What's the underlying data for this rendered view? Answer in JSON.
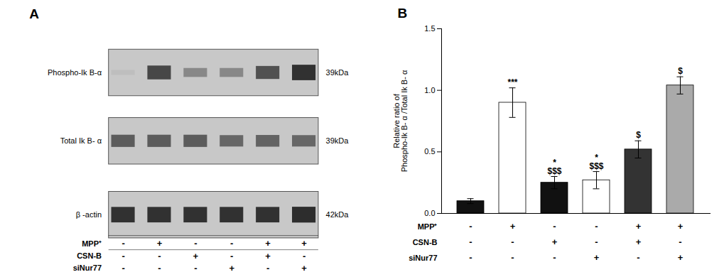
{
  "chart_data": [
    {
      "type": "heatmap",
      "title": "A",
      "rows": [
        "Phospho-Ik B-α",
        "Total Ik B- α",
        "β -actin"
      ],
      "row_annotations": [
        "39kDa",
        "39kDa",
        "42kDa"
      ],
      "cells": [
        [
          0.3,
          0.85,
          0.55,
          0.55,
          0.8,
          0.95
        ],
        [
          0.75,
          0.75,
          0.75,
          0.7,
          0.72,
          0.7
        ],
        [
          0.95,
          0.95,
          0.95,
          0.95,
          0.95,
          0.97
        ]
      ],
      "treatment_labels": [
        "MPP⁺",
        "CSN-B",
        "siNur77"
      ],
      "treatment_rows": [
        [
          "-",
          "+",
          "-",
          "-",
          "+",
          "+"
        ],
        [
          "-",
          "-",
          "+",
          "-",
          "+",
          "-"
        ],
        [
          "-",
          "-",
          "-",
          "+",
          "-",
          "+"
        ]
      ],
      "tick_labels": false
    },
    {
      "type": "bar",
      "title": "B",
      "ylabel": "Relative ratio of\nPhospho-Ik B- α /Total Ik B- α",
      "values": [
        0.1,
        0.9,
        0.25,
        0.27,
        0.52,
        1.04
      ],
      "errors": [
        0.02,
        0.12,
        0.05,
        0.07,
        0.07,
        0.07
      ],
      "colors": [
        "#111111",
        "white",
        "#111111",
        "white",
        "#333333",
        "#aaaaaa"
      ],
      "annotations": [
        [],
        [
          "***"
        ],
        [
          "*",
          "$$$"
        ],
        [
          "*",
          "$$$"
        ],
        [
          "$"
        ],
        [
          "$"
        ]
      ],
      "treatment_labels": [
        "MPP⁺",
        "CSN-B",
        "siNur77"
      ],
      "treatment_rows": [
        [
          "-",
          "+",
          "-",
          "-",
          "+",
          "+"
        ],
        [
          "-",
          "-",
          "+",
          "-",
          "+",
          "-"
        ],
        [
          "-",
          "-",
          "-",
          "+",
          "-",
          "+"
        ]
      ],
      "ylim": [
        0,
        1.5
      ],
      "yticks": [
        {
          "value": 0,
          "label": "0.0"
        },
        0.5,
        {
          "value": 1.0,
          "label": "1.0"
        },
        {
          "value": 1.5,
          "label": "1.5"
        }
      ],
      "tick_labels": "y"
    }
  ]
}
